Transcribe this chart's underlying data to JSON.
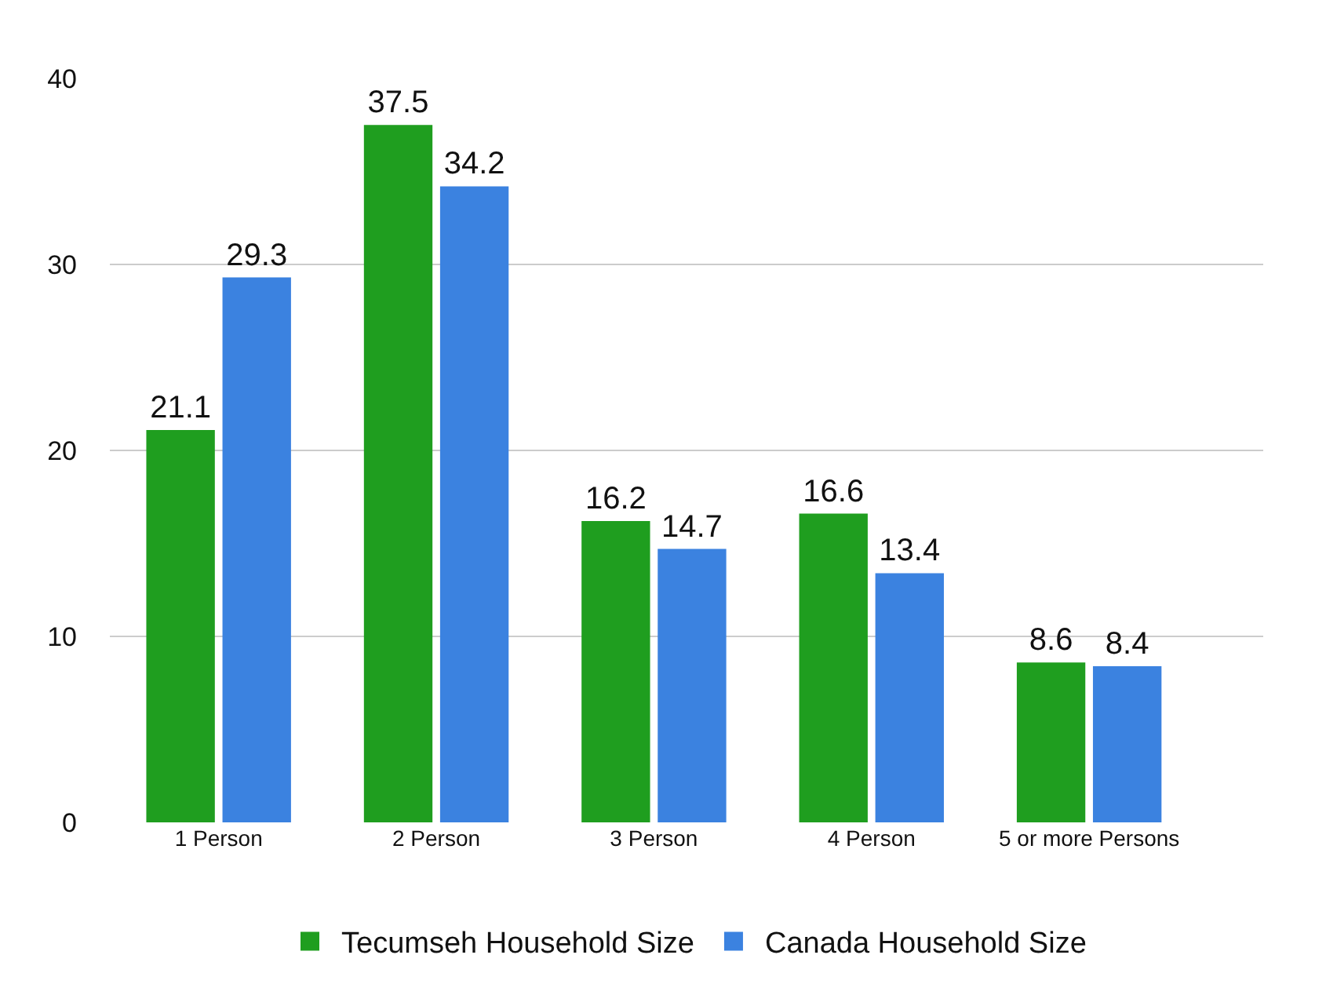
{
  "chart_data": {
    "type": "bar",
    "categories": [
      "1 Person",
      "2 Person",
      "3 Person",
      "4 Person",
      "5 or more Persons"
    ],
    "series": [
      {
        "name": "Tecumseh Household Size",
        "color": "#1f9e1f",
        "values": [
          21.1,
          37.5,
          16.2,
          16.6,
          8.6
        ]
      },
      {
        "name": "Canada Household Size",
        "color": "#3b82e0",
        "values": [
          29.3,
          34.2,
          14.7,
          13.4,
          8.4
        ]
      }
    ],
    "ylim": [
      0,
      40
    ],
    "yticks": [
      0,
      10,
      20,
      30,
      40
    ],
    "grid": "y",
    "legend": "bottom",
    "data_labels": true
  }
}
